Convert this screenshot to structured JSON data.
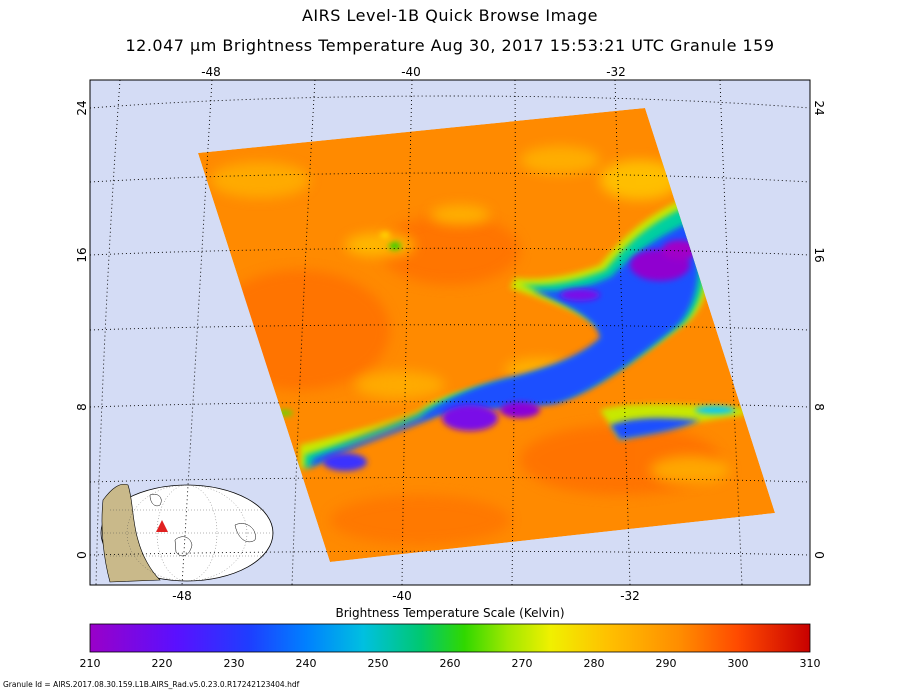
{
  "header": {
    "title": "AIRS Level-1B Quick Browse Image",
    "subtitle": "12.047 μm Brightness Temperature   Aug 30, 2017 15:53:21 UTC  Granule 159"
  },
  "map": {
    "top_lon_labels": [
      "-48",
      "-40",
      "-32"
    ],
    "bottom_lon_labels": [
      "-48",
      "-40",
      "-32"
    ],
    "left_lat_labels": [
      "24",
      "16",
      "8",
      "0"
    ],
    "right_lat_labels": [
      "24",
      "16",
      "8",
      "0"
    ],
    "colors": {
      "background": "#d4dcf5",
      "warm_field": "#ff8a00",
      "warmer": "#ff6a00",
      "cool_yellow": "#ffd500",
      "green": "#6be000",
      "cyan": "#00c8ff",
      "blue": "#2a3cff",
      "purple": "#9000d8"
    }
  },
  "colorbar": {
    "title": "Brightness Temperature Scale (Kelvin)",
    "min": 210,
    "max": 310,
    "tick_labels": [
      "210",
      "220",
      "230",
      "240",
      "250",
      "260",
      "270",
      "280",
      "290",
      "300",
      "310"
    ]
  },
  "footer": {
    "granule_id": "Granule Id = AIRS.2017.08.30.159.L1B.AIRS_Rad.v5.0.23.0.R17242123404.hdf"
  }
}
